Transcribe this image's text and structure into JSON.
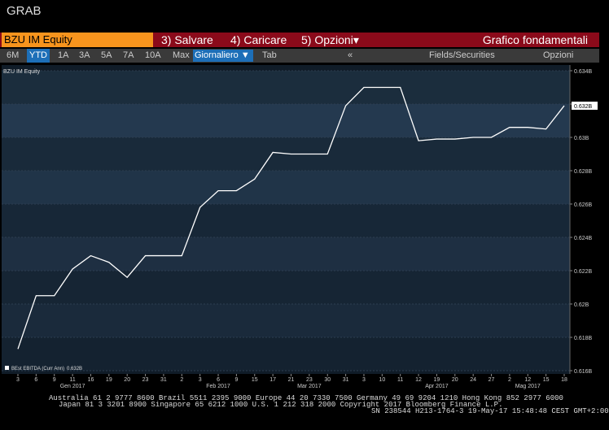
{
  "header": {
    "app_title": "GRAB",
    "ticker": "BZU IM Equity",
    "buttons": [
      "3) Salvare",
      "4) Caricare",
      "5) Opzioni"
    ],
    "screen_title": "Grafico fondamentali"
  },
  "toolbar": {
    "periods": [
      "6M",
      "YTD",
      "1A",
      "3A",
      "5A",
      "7A",
      "10A",
      "Max"
    ],
    "active_period": "YTD",
    "frequency": "Giornaliero",
    "tab": "Tab",
    "collapse": "«",
    "fields": "Fields/Securities",
    "options": "Opzioni"
  },
  "chart_data": {
    "type": "line",
    "title": "BZU IM Equity",
    "categories": [
      "3",
      "6",
      "9",
      "11",
      "16",
      "19",
      "20",
      "23",
      "31",
      "2",
      "3",
      "6",
      "9",
      "15",
      "17",
      "21",
      "23",
      "30",
      "31",
      "3",
      "10",
      "11",
      "12",
      "19",
      "20",
      "24",
      "27",
      "2",
      "12",
      "15",
      "18"
    ],
    "x_groups": [
      null,
      null,
      null,
      "Gen 2017",
      null,
      null,
      null,
      null,
      null,
      null,
      null,
      "Feb 2017",
      null,
      null,
      null,
      null,
      "Mar 2017",
      null,
      null,
      null,
      null,
      null,
      null,
      "Apr 2017",
      null,
      null,
      null,
      null,
      "Mag 2017",
      null,
      null
    ],
    "series": [
      {
        "name": "BEst EBITDA (Curr Ann)",
        "color": "#ffffff",
        "values": [
          0.6173,
          0.6205,
          0.6205,
          0.6221,
          0.6229,
          0.6225,
          0.6216,
          0.6229,
          0.6229,
          0.6229,
          0.6258,
          0.6268,
          0.6268,
          0.6275,
          0.6291,
          0.629,
          0.629,
          0.629,
          0.6319,
          0.633,
          0.633,
          0.633,
          0.6298,
          0.6299,
          0.6299,
          0.63,
          0.63,
          0.6306,
          0.6306,
          0.6305,
          0.6319
        ]
      }
    ],
    "last_label": {
      "value": 0.6319,
      "label": "0.632B"
    },
    "ylim": [
      0.616,
      0.634
    ],
    "yticks": [
      {
        "value": 0.616,
        "label": "0.616B"
      },
      {
        "value": 0.618,
        "label": "0.618B"
      },
      {
        "value": 0.62,
        "label": "0.62B"
      },
      {
        "value": 0.622,
        "label": "0.622B"
      },
      {
        "value": 0.624,
        "label": "0.624B"
      },
      {
        "value": 0.626,
        "label": "0.626B"
      },
      {
        "value": 0.628,
        "label": "0.628B"
      },
      {
        "value": 0.63,
        "label": "0.63B"
      },
      {
        "value": 0.632,
        "label": "0.632B"
      },
      {
        "value": 0.634,
        "label": "0.634B"
      }
    ],
    "grid": true
  },
  "footer": {
    "lines": [
      "Australia 61 2 9777 8600 Brazil 5511 2395 9000 Europe 44 20 7330 7500 Germany 49 69 9204 1210 Hong Kong 852 2977 6000",
      "Japan 81 3 3201 8900         Singapore 65 6212 1000         U.S. 1 212 318 2000         Copyright 2017 Bloomberg Finance L.P.",
      "SN 238544 H213-1764-3 19-May-17 15:48:48 CEST GMT+2:00"
    ]
  }
}
